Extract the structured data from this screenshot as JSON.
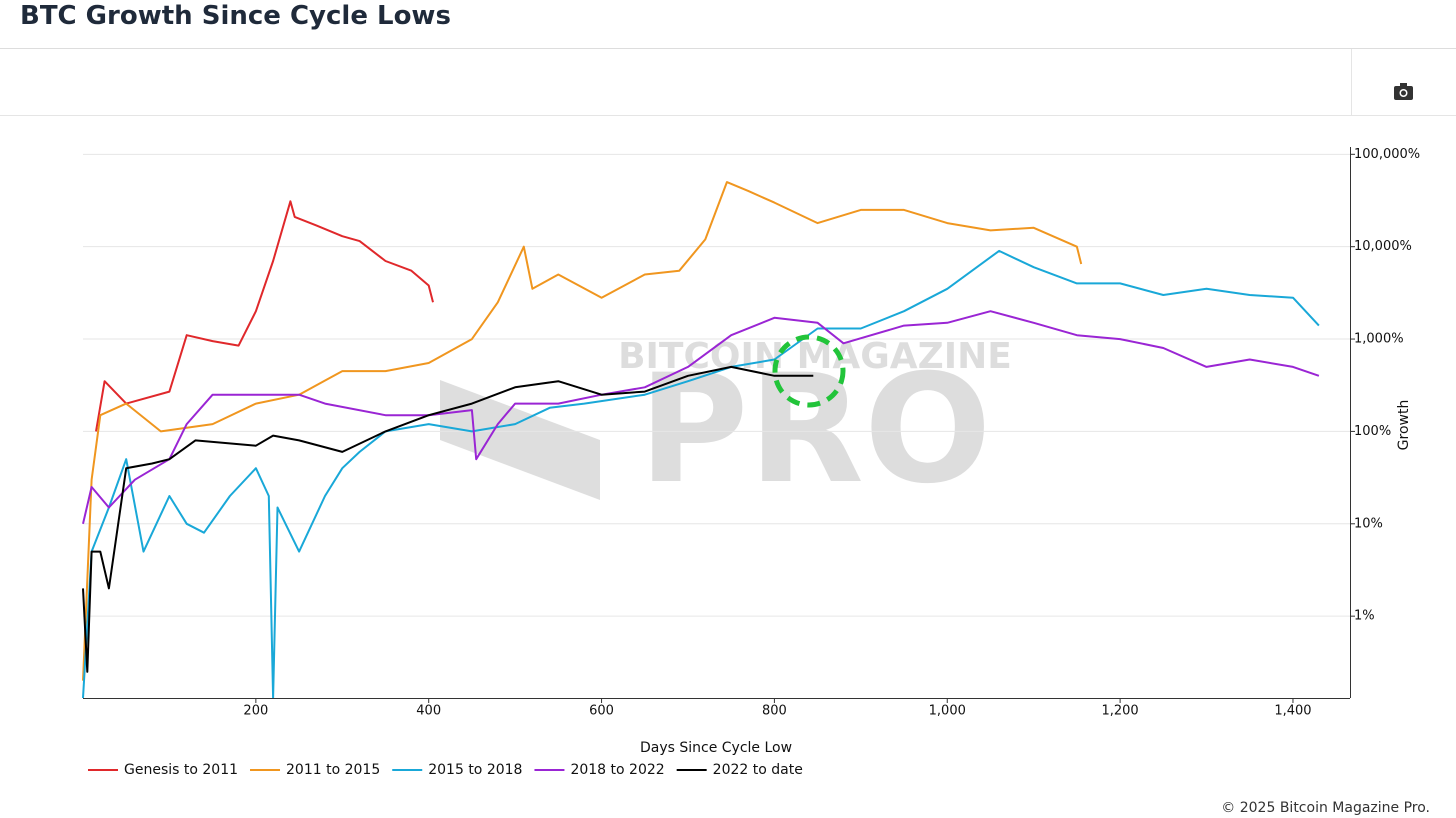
{
  "header": {
    "title": "BTC Growth Since Cycle Lows"
  },
  "chart_data": {
    "type": "line",
    "x_label": "Days Since Cycle Low",
    "y_label": "Growth",
    "watermark": {
      "top": "BITCOIN MAGAZINE",
      "bottom": "PRO"
    },
    "xlim": [
      0,
      1466
    ],
    "xticks": [
      200,
      400,
      600,
      800,
      {
        "value": 1000,
        "label": "1,000"
      },
      {
        "value": 1200,
        "label": "1,200"
      },
      {
        "value": 1400,
        "label": "1,400"
      }
    ],
    "ylim": [
      0.13,
      120000
    ],
    "yscale": "log",
    "yticks": [
      {
        "value": 1,
        "label": "1%"
      },
      {
        "value": 10,
        "label": "10%"
      },
      {
        "value": 100,
        "label": "100%"
      },
      {
        "value": 1000,
        "label": "1,000%"
      },
      {
        "value": 10000,
        "label": "10,000%"
      },
      {
        "value": 100000,
        "label": "100,000%"
      }
    ],
    "grid": true,
    "legend": "bottom-left",
    "series": [
      {
        "name": "Genesis to 2011",
        "color": "#e0282b",
        "x": [
          15,
          25,
          50,
          100,
          120,
          150,
          180,
          200,
          220,
          240,
          245,
          270,
          300,
          320,
          350,
          380,
          400,
          405
        ],
        "values": [
          100,
          350,
          200,
          270,
          1100,
          950,
          850,
          2000,
          7000,
          31000,
          21000,
          17000,
          13000,
          11500,
          7000,
          5500,
          3800,
          2500
        ]
      },
      {
        "name": "2011 to 2015",
        "color": "#f0961f",
        "x": [
          0,
          10,
          20,
          50,
          90,
          150,
          200,
          250,
          300,
          350,
          400,
          450,
          480,
          510,
          520,
          550,
          600,
          650,
          690,
          720,
          745,
          770,
          800,
          850,
          900,
          950,
          1000,
          1050,
          1100,
          1150,
          1155
        ],
        "values": [
          0.2,
          30,
          150,
          200,
          100,
          120,
          200,
          250,
          450,
          450,
          550,
          1000,
          2500,
          10000,
          3500,
          5000,
          2800,
          5000,
          5500,
          12000,
          50000,
          40000,
          30000,
          18000,
          25000,
          25000,
          18000,
          15000,
          16000,
          10000,
          6500
        ]
      },
      {
        "name": "2015 to 2018",
        "color": "#19a8d8",
        "x": [
          0,
          10,
          30,
          50,
          70,
          100,
          120,
          140,
          170,
          200,
          215,
          220,
          225,
          250,
          280,
          300,
          320,
          350,
          400,
          450,
          500,
          540,
          580,
          650,
          700,
          750,
          800,
          850,
          900,
          950,
          1000,
          1060,
          1100,
          1150,
          1200,
          1250,
          1300,
          1350,
          1400,
          1430
        ],
        "values": [
          0.13,
          5,
          15,
          50,
          5,
          20,
          10,
          8,
          20,
          40,
          20,
          0.13,
          15,
          5,
          20,
          40,
          60,
          100,
          120,
          100,
          120,
          180,
          200,
          250,
          350,
          500,
          600,
          1300,
          1300,
          2000,
          3500,
          9000,
          6000,
          4000,
          4000,
          3000,
          3500,
          3000,
          2800,
          1400
        ]
      },
      {
        "name": "2018 to 2022",
        "color": "#9a25d4",
        "x": [
          0,
          10,
          30,
          60,
          100,
          120,
          150,
          200,
          250,
          280,
          350,
          400,
          450,
          455,
          480,
          500,
          550,
          600,
          650,
          700,
          750,
          800,
          850,
          880,
          950,
          1000,
          1050,
          1100,
          1150,
          1200,
          1250,
          1300,
          1350,
          1400,
          1430
        ],
        "values": [
          10,
          25,
          15,
          30,
          50,
          120,
          250,
          250,
          250,
          200,
          150,
          150,
          170,
          50,
          120,
          200,
          200,
          250,
          300,
          500,
          1100,
          1700,
          1500,
          900,
          1400,
          1500,
          2000,
          1500,
          1100,
          1000,
          800,
          500,
          600,
          500,
          400
        ]
      },
      {
        "name": "2022 to date",
        "color": "#000000",
        "x": [
          0,
          5,
          10,
          20,
          30,
          50,
          80,
          100,
          130,
          200,
          220,
          250,
          300,
          350,
          400,
          450,
          500,
          550,
          600,
          650,
          700,
          750,
          800,
          845
        ],
        "values": [
          2,
          0.25,
          5,
          5,
          2,
          40,
          45,
          50,
          80,
          70,
          90,
          80,
          60,
          100,
          150,
          200,
          300,
          350,
          250,
          270,
          400,
          500,
          400,
          400
        ]
      }
    ]
  },
  "footer": {
    "copyright": "© 2025 Bitcoin Magazine Pro."
  }
}
